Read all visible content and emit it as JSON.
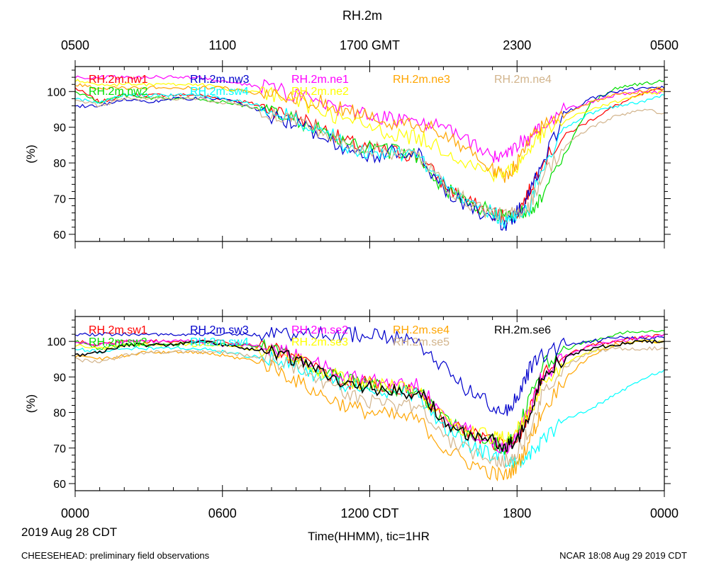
{
  "title": "RH.2m",
  "footer": {
    "left": "CHEESEHEAD: preliminary field observations",
    "right": "NCAR 18:08 Aug 29 2019 CDT"
  },
  "x_axis": {
    "label": "Time(HHMM), tic=1HR",
    "date_label": "2019 Aug 28 CDT",
    "bottom_ticks": [
      "0000",
      "0600",
      "1200 CDT",
      "1800",
      "0000"
    ],
    "top_ticks": [
      "0500",
      "1100",
      "1700 GMT",
      "2300",
      "0500"
    ]
  },
  "chart_data": [
    {
      "type": "line",
      "ylabel": "(%)",
      "ylim": [
        58,
        107
      ],
      "yticks": [
        60,
        70,
        80,
        90,
        100
      ],
      "xlim": [
        0,
        24
      ],
      "series": [
        {
          "name": "RH.2m.nw1",
          "color": "#ff0000",
          "x": [
            0,
            1,
            2,
            3,
            4,
            5,
            6,
            7,
            8,
            9,
            10,
            11,
            12,
            13,
            14,
            15,
            16,
            17,
            17.5,
            18,
            18.5,
            19,
            20,
            21,
            22,
            23,
            24
          ],
          "values": [
            101,
            97,
            99,
            99,
            99,
            99,
            98,
            97,
            95,
            93,
            90,
            86,
            84,
            83,
            82,
            74,
            69,
            66,
            65,
            66,
            72,
            80,
            88,
            92,
            96,
            99,
            101
          ]
        },
        {
          "name": "RH.2m.nw2",
          "color": "#00dd00",
          "x": [
            0,
            1,
            2,
            3,
            4,
            5,
            6,
            7,
            8,
            9,
            10,
            11,
            12,
            13,
            14,
            15,
            16,
            17,
            17.5,
            18,
            18.5,
            19,
            20,
            21,
            22,
            23,
            24
          ],
          "values": [
            100,
            97,
            99,
            98,
            98,
            98,
            97,
            96,
            94,
            92,
            89,
            85,
            84,
            83,
            82,
            73,
            69,
            66,
            65,
            66,
            67,
            70,
            83,
            97,
            101,
            102,
            103
          ]
        },
        {
          "name": "RH.2m.nw3",
          "color": "#0000cc",
          "x": [
            0,
            1,
            2,
            3,
            4,
            5,
            6,
            7,
            8,
            9,
            10,
            11,
            12,
            13,
            14,
            15,
            16,
            17,
            17.5,
            18,
            18.5,
            19,
            20,
            21,
            22,
            23,
            24
          ],
          "values": [
            96,
            96,
            98,
            97,
            98,
            98,
            98,
            96,
            93,
            91,
            88,
            84,
            82,
            83,
            82,
            73,
            67,
            65,
            62,
            66,
            71,
            80,
            94,
            98,
            100,
            101,
            101
          ]
        },
        {
          "name": "RH.2m.sw4",
          "color": "#00ffff",
          "x": [
            0,
            1,
            2,
            3,
            4,
            5,
            6,
            7,
            8,
            9,
            10,
            11,
            12,
            13,
            14,
            15,
            16,
            17,
            17.5,
            18,
            18.5,
            19,
            20,
            21,
            22,
            23,
            24
          ],
          "values": [
            98,
            97,
            99,
            99,
            99,
            99,
            98,
            97,
            95,
            92,
            90,
            85,
            83,
            83,
            82,
            74,
            70,
            66,
            64,
            65,
            67,
            79,
            90,
            94,
            96,
            97,
            99
          ]
        },
        {
          "name": "RH.2m.ne1",
          "color": "#ff00ff",
          "x": [
            0,
            1,
            2,
            3,
            4,
            5,
            6,
            7,
            8,
            9,
            10,
            11,
            12,
            13,
            14,
            15,
            16,
            17,
            17.5,
            18,
            18.5,
            19,
            20,
            21,
            22,
            23,
            24
          ],
          "values": [
            104,
            104,
            104,
            104,
            104,
            104,
            103,
            102,
            101,
            99,
            97,
            95,
            93,
            92,
            92,
            90,
            86,
            82,
            81,
            85,
            87,
            90,
            95,
            97,
            99,
            100,
            100
          ]
        },
        {
          "name": "RH.2m.ne2",
          "color": "#ffff00",
          "x": [
            0,
            1,
            2,
            3,
            4,
            5,
            6,
            7,
            8,
            9,
            10,
            11,
            12,
            13,
            14,
            15,
            16,
            17,
            17.5,
            18,
            18.5,
            19,
            20,
            21,
            22,
            23,
            24
          ],
          "values": [
            103,
            102,
            102,
            102,
            102,
            102,
            101,
            100,
            99,
            97,
            95,
            92,
            90,
            88,
            87,
            84,
            80,
            77,
            77,
            79,
            84,
            88,
            92,
            95,
            97,
            99,
            100
          ]
        },
        {
          "name": "RH.2m.ne3",
          "color": "#ffa500",
          "x": [
            0,
            1,
            2,
            3,
            4,
            5,
            6,
            7,
            8,
            9,
            10,
            11,
            12,
            13,
            14,
            15,
            16,
            17,
            17.5,
            18,
            18.5,
            19,
            20,
            21,
            22,
            23,
            24
          ],
          "values": [
            102,
            101,
            101,
            101,
            101,
            101,
            101,
            100,
            99,
            98,
            97,
            95,
            93,
            91,
            91,
            88,
            84,
            78,
            76,
            80,
            86,
            90,
            94,
            97,
            99,
            100,
            101
          ]
        },
        {
          "name": "RH.2m.ne4",
          "color": "#d2b48c",
          "x": [
            0,
            1,
            2,
            3,
            4,
            5,
            6,
            7,
            8,
            9,
            10,
            11,
            12,
            13,
            14,
            15,
            16,
            17,
            17.5,
            18,
            18.5,
            19,
            20,
            21,
            22,
            23,
            24
          ],
          "values": [
            98,
            96,
            98,
            98,
            98,
            98,
            97,
            96,
            94,
            92,
            89,
            85,
            84,
            83,
            82,
            74,
            69,
            66,
            65,
            66,
            68,
            76,
            85,
            90,
            93,
            95,
            94
          ]
        }
      ]
    },
    {
      "type": "line",
      "ylabel": "(%)",
      "ylim": [
        58,
        107
      ],
      "yticks": [
        60,
        70,
        80,
        90,
        100
      ],
      "xlim": [
        0,
        24
      ],
      "series": [
        {
          "name": "RH.2m.sw1",
          "color": "#ff0000",
          "x": [
            0,
            1,
            2,
            3,
            4,
            5,
            6,
            7,
            8,
            9,
            10,
            11,
            12,
            13,
            14,
            15,
            16,
            17,
            17.5,
            18,
            18.5,
            19,
            20,
            21,
            22,
            23,
            24
          ],
          "values": [
            100,
            99,
            100,
            100,
            100,
            100,
            100,
            99,
            98,
            95,
            92,
            89,
            88,
            87,
            86,
            78,
            74,
            72,
            70,
            72,
            80,
            90,
            96,
            99,
            100,
            101,
            102
          ]
        },
        {
          "name": "RH.2m.sw2",
          "color": "#00dd00",
          "x": [
            0,
            1,
            2,
            3,
            4,
            5,
            6,
            7,
            8,
            9,
            10,
            11,
            12,
            13,
            14,
            15,
            16,
            17,
            17.5,
            18,
            18.5,
            19,
            20,
            21,
            22,
            23,
            24
          ],
          "values": [
            100,
            98,
            99,
            99,
            99,
            100,
            99,
            99,
            98,
            95,
            92,
            89,
            88,
            87,
            86,
            78,
            74,
            72,
            70,
            74,
            84,
            93,
            98,
            100,
            102,
            103,
            103
          ]
        },
        {
          "name": "RH.2m.sw3",
          "color": "#0000cc",
          "x": [
            0,
            1,
            2,
            3,
            4,
            5,
            6,
            7,
            8,
            9,
            10,
            11,
            12,
            13,
            14,
            15,
            16,
            17,
            17.5,
            18,
            18.5,
            19,
            20,
            21,
            22,
            23,
            24
          ],
          "values": [
            102,
            102,
            102,
            102,
            102,
            102,
            102,
            102,
            102,
            102,
            102,
            102,
            102,
            101,
            99,
            93,
            86,
            82,
            80,
            84,
            92,
            96,
            99,
            100,
            101,
            101,
            101
          ]
        },
        {
          "name": "RH.2m.sw4",
          "color": "#00ffff",
          "x": [
            0,
            1,
            2,
            3,
            4,
            5,
            6,
            7,
            8,
            9,
            10,
            11,
            12,
            13,
            14,
            15,
            16,
            17,
            17.5,
            18,
            18.5,
            19,
            20,
            21,
            22,
            23,
            24
          ],
          "values": [
            98,
            97,
            98,
            98,
            98,
            98,
            97,
            96,
            95,
            93,
            90,
            88,
            87,
            86,
            85,
            76,
            71,
            68,
            67,
            66,
            68,
            72,
            78,
            81,
            85,
            89,
            92
          ]
        },
        {
          "name": "RH.2m.se2",
          "color": "#ff00ff",
          "x": [
            0,
            1,
            2,
            3,
            4,
            5,
            6,
            7,
            8,
            9,
            10,
            11,
            12,
            13,
            14,
            15,
            16,
            17,
            17.5,
            18,
            18.5,
            19,
            20,
            21,
            22,
            23,
            24
          ],
          "values": [
            100,
            99,
            100,
            100,
            100,
            100,
            99,
            99,
            98,
            96,
            93,
            90,
            89,
            88,
            88,
            79,
            75,
            72,
            70,
            73,
            81,
            90,
            96,
            99,
            100,
            101,
            102
          ]
        },
        {
          "name": "RH.2m.se3",
          "color": "#ffff00",
          "x": [
            0,
            1,
            2,
            3,
            4,
            5,
            6,
            7,
            8,
            9,
            10,
            11,
            12,
            13,
            14,
            15,
            16,
            17,
            17.5,
            18,
            18.5,
            19,
            20,
            21,
            22,
            23,
            24
          ],
          "values": [
            99,
            98,
            99,
            99,
            99,
            99,
            99,
            98,
            97,
            95,
            92,
            89,
            88,
            87,
            86,
            78,
            75,
            73,
            73,
            75,
            80,
            87,
            94,
            97,
            99,
            100,
            100
          ]
        },
        {
          "name": "RH.2m.se4",
          "color": "#ffa500",
          "x": [
            0,
            1,
            2,
            3,
            4,
            5,
            6,
            7,
            8,
            9,
            10,
            11,
            12,
            13,
            14,
            15,
            16,
            17,
            17.5,
            18,
            18.5,
            19,
            20,
            21,
            22,
            23,
            24
          ],
          "values": [
            96,
            95,
            96,
            97,
            97,
            97,
            96,
            95,
            93,
            89,
            85,
            82,
            80,
            79,
            78,
            70,
            66,
            63,
            62,
            65,
            72,
            80,
            90,
            96,
            99,
            100,
            100
          ]
        },
        {
          "name": "RH.2m.se5",
          "color": "#d2b48c",
          "x": [
            0,
            1,
            2,
            3,
            4,
            5,
            6,
            7,
            8,
            9,
            10,
            11,
            12,
            13,
            14,
            15,
            16,
            17,
            17.5,
            18,
            18.5,
            19,
            20,
            21,
            22,
            23,
            24
          ],
          "values": [
            95,
            94,
            96,
            97,
            97,
            97,
            97,
            96,
            95,
            92,
            88,
            85,
            83,
            82,
            82,
            73,
            69,
            67,
            66,
            69,
            75,
            85,
            93,
            97,
            98,
            98,
            98
          ]
        },
        {
          "name": "RH.2m.se6",
          "color": "#000000",
          "x": [
            0,
            1,
            2,
            3,
            4,
            5,
            6,
            7,
            8,
            9,
            10,
            11,
            12,
            13,
            14,
            15,
            16,
            17,
            17.5,
            18,
            18.5,
            19,
            20,
            21,
            22,
            23,
            24
          ],
          "values": [
            96,
            97,
            99,
            99,
            99,
            100,
            99,
            98,
            97,
            95,
            91,
            88,
            87,
            86,
            86,
            78,
            73,
            72,
            70,
            72,
            80,
            90,
            96,
            98,
            99,
            100,
            100
          ]
        }
      ]
    }
  ]
}
